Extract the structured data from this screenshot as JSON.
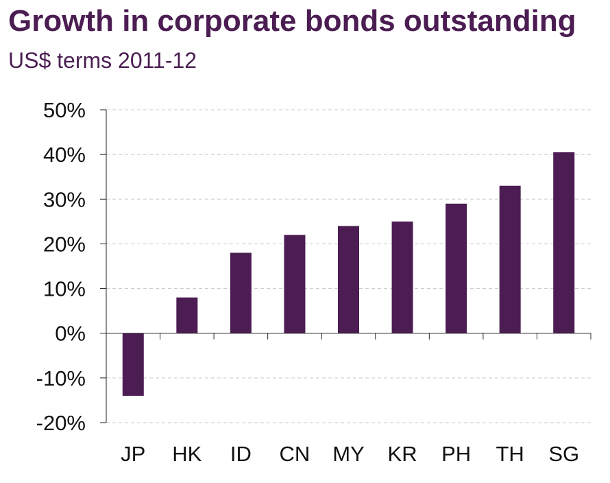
{
  "chart_data": {
    "type": "bar",
    "title": "Growth in corporate bonds outstanding",
    "subtitle": "US$ terms 2011-12",
    "categories": [
      "JP",
      "HK",
      "ID",
      "CN",
      "MY",
      "KR",
      "PH",
      "TH",
      "SG"
    ],
    "values": [
      -14,
      8,
      18,
      22,
      24,
      25,
      29,
      33,
      40.5
    ],
    "ylim": [
      -20,
      50
    ],
    "yticks": [
      50,
      40,
      30,
      20,
      10,
      0,
      -10,
      -20
    ],
    "ytick_labels": [
      "50%",
      "40%",
      "30%",
      "20%",
      "10%",
      "0%",
      "-10%",
      "-20%"
    ],
    "xlabel": "",
    "ylabel": "",
    "grid": true,
    "bar_color": "#4b1d52",
    "text_color": "#4b1d52"
  }
}
